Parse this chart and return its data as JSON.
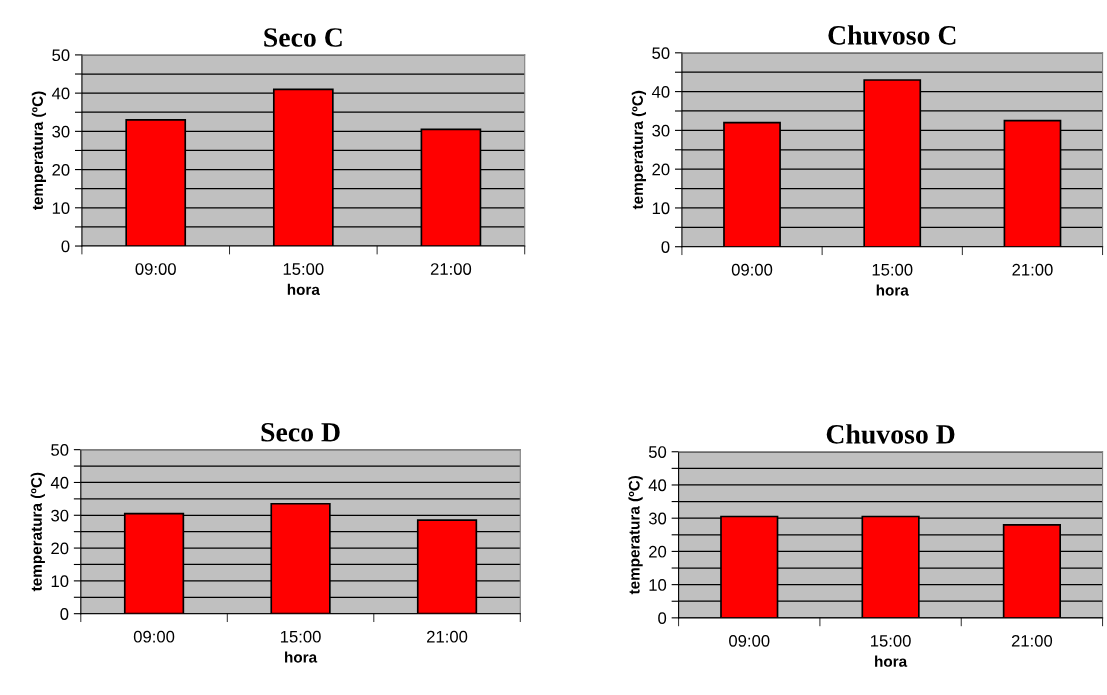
{
  "chart_data": [
    {
      "type": "bar",
      "title": "Seco C",
      "xlabel": "hora",
      "ylabel": "temperatura (ºC)",
      "categories": [
        "09:00",
        "15:00",
        "21:00"
      ],
      "values": [
        33,
        41,
        30.5
      ],
      "color": "#ff0000",
      "ylim": [
        0,
        50
      ],
      "yticks": [
        0,
        {
          "value": 5,
          "label": null
        },
        10,
        {
          "value": 15,
          "label": null
        },
        20,
        {
          "value": 25,
          "label": null
        },
        30,
        {
          "value": 35,
          "label": null
        },
        40,
        {
          "value": 45,
          "label": null
        },
        50
      ],
      "grid": "y"
    },
    {
      "type": "bar",
      "title": "Chuvoso C",
      "xlabel": "hora",
      "ylabel": "temperatura (ºC)",
      "categories": [
        "09:00",
        "15:00",
        "21:00"
      ],
      "values": [
        32,
        43,
        32.5
      ],
      "color": "#ff0000",
      "ylim": [
        0,
        50
      ],
      "yticks": [
        0,
        {
          "value": 5,
          "label": null
        },
        10,
        {
          "value": 15,
          "label": null
        },
        20,
        {
          "value": 25,
          "label": null
        },
        30,
        {
          "value": 35,
          "label": null
        },
        40,
        {
          "value": 45,
          "label": null
        },
        50
      ],
      "grid": "y"
    },
    {
      "type": "bar",
      "title": "Seco D",
      "xlabel": "hora",
      "ylabel": "temperatura (ºC)",
      "categories": [
        "09:00",
        "15:00",
        "21:00"
      ],
      "values": [
        30.5,
        33.5,
        28.5
      ],
      "color": "#ff0000",
      "ylim": [
        0,
        50
      ],
      "yticks": [
        0,
        {
          "value": 5,
          "label": null
        },
        10,
        {
          "value": 15,
          "label": null
        },
        20,
        {
          "value": 25,
          "label": null
        },
        30,
        {
          "value": 35,
          "label": null
        },
        40,
        {
          "value": 45,
          "label": null
        },
        50
      ],
      "grid": "y"
    },
    {
      "type": "bar",
      "title": "Chuvoso D",
      "xlabel": "hora",
      "ylabel": "temperatura (ºC)",
      "categories": [
        "09:00",
        "15:00",
        "21:00"
      ],
      "values": [
        30.5,
        30.5,
        28
      ],
      "color": "#ff0000",
      "ylim": [
        0,
        50
      ],
      "yticks": [
        0,
        {
          "value": 5,
          "label": null
        },
        10,
        {
          "value": 15,
          "label": null
        },
        20,
        {
          "value": 25,
          "label": null
        },
        30,
        {
          "value": 35,
          "label": null
        },
        40,
        {
          "value": 45,
          "label": null
        },
        50
      ],
      "grid": "y"
    }
  ]
}
